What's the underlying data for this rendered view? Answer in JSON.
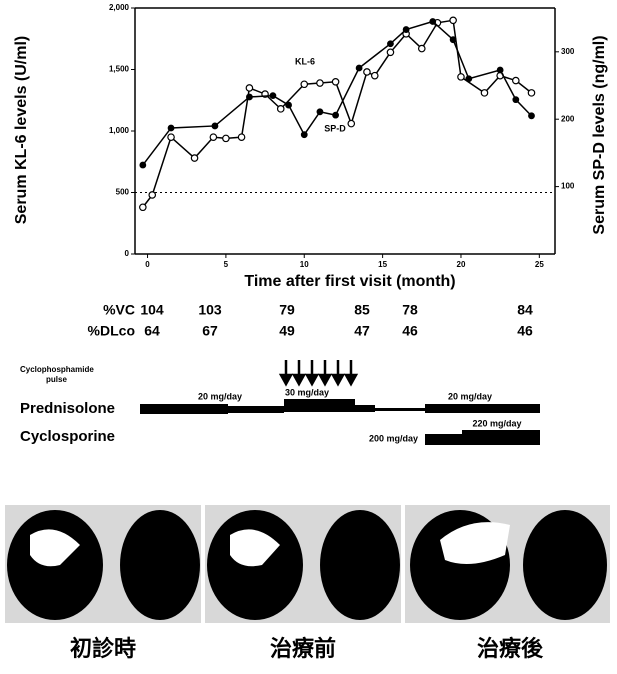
{
  "chart_data": {
    "type": "line",
    "y_label": "Serum KL-6 levels (U/ml)",
    "y2_label": "Serum SP-D levels (ng/ml)",
    "x_label": "Time after first visit (month)",
    "xlim": [
      -0.8,
      26
    ],
    "xticks": [
      0,
      5,
      10,
      15,
      20,
      25
    ],
    "ylim": [
      0,
      2000
    ],
    "yticks": [
      0,
      500,
      {
        "value": 1000,
        "label": "1,000"
      },
      {
        "value": 1500,
        "label": "1,500"
      },
      {
        "value": 2000,
        "label": "2,000"
      }
    ],
    "y2lim": [
      0,
      365
    ],
    "y2ticks": [
      100,
      200,
      300
    ],
    "reference_line": 500,
    "series": [
      {
        "name": "KL-6",
        "color": "#000000",
        "marker": "open",
        "x": [
          -0.3,
          0.3,
          1.5,
          3,
          4.2,
          5,
          6,
          6.5,
          7.5,
          8.5,
          10,
          11,
          12,
          13,
          14,
          14.5,
          15.5,
          16.5,
          17.5,
          18.5,
          19.5,
          20,
          21.5,
          22.5,
          23.5,
          24.5
        ],
        "values": [
          380,
          480,
          950,
          780,
          950,
          940,
          950,
          1350,
          1300,
          1180,
          1380,
          1390,
          1400,
          1060,
          1480,
          1450,
          1640,
          1790,
          1670,
          1880,
          1900,
          1440,
          1310,
          1450,
          1410,
          1310
        ]
      },
      {
        "name": "SP-D",
        "color": "#000000",
        "marker": "filled",
        "axis": "y2",
        "x": [
          -0.3,
          1.5,
          4.3,
          6.5,
          8,
          9,
          10,
          11,
          12,
          13.5,
          15.5,
          16.5,
          18.2,
          19.5,
          20.5,
          22.5,
          23.5,
          24.5
        ],
        "values": [
          132,
          187,
          190,
          233,
          235,
          221,
          177,
          211,
          206,
          276,
          312,
          333,
          345,
          318,
          260,
          273,
          229,
          205
        ]
      }
    ]
  },
  "lung_function": {
    "rows": [
      {
        "label": "%VC",
        "values": [
          "104",
          "103",
          "79",
          "85",
          "78",
          "84"
        ]
      },
      {
        "label": "%DLco",
        "values": [
          "64",
          "67",
          "49",
          "47",
          "46",
          "46"
        ]
      }
    ]
  },
  "treatment": {
    "pulse_label": [
      "Cyclophosphamide",
      "pulse"
    ],
    "prednisolone": {
      "label": "Prednisolone",
      "doses": [
        "20 mg/day",
        "30 mg/day",
        "20 mg/day"
      ]
    },
    "cyclosporine": {
      "label": "Cyclosporine",
      "doses": [
        "200 mg/day",
        "220 mg/day"
      ]
    }
  },
  "images": {
    "captions": [
      "初診時",
      "治療前",
      "治療後"
    ]
  }
}
